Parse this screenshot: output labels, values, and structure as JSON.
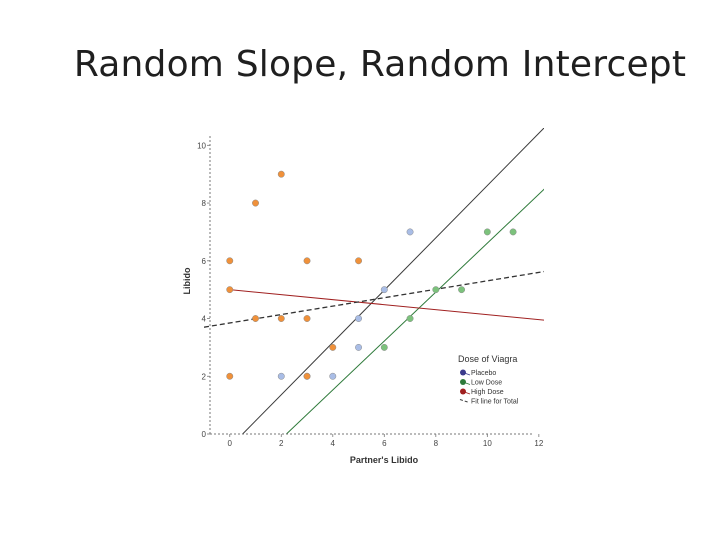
{
  "slide": {
    "title": "Random Slope, Random Intercept"
  },
  "chart_data": {
    "type": "scatter",
    "xlabel": "Partner's Libido",
    "ylabel": "Libido",
    "xlim": [
      -1,
      12.2
    ],
    "ylim": [
      0,
      10.6
    ],
    "x_ticks": [
      0,
      2,
      4,
      6,
      8,
      10,
      12
    ],
    "y_ticks": [
      0,
      2,
      4,
      6,
      8,
      10
    ],
    "legend": {
      "title": "Dose of Viagra",
      "placement": "bottom-right",
      "entries": [
        {
          "label": "Placebo",
          "color": "#3b3b8c",
          "marker": "dot"
        },
        {
          "label": "Low Dose",
          "color": "#2e7a3a",
          "marker": "dot"
        },
        {
          "label": "High Dose",
          "color": "#a02020",
          "marker": "dot"
        },
        {
          "label": "Fit line for Total",
          "color": "#333333",
          "marker": "dash"
        }
      ]
    },
    "series": [
      {
        "name": "Placebo",
        "color": "#a9bde6",
        "points": [
          [
            2,
            2
          ],
          [
            3,
            2
          ],
          [
            4,
            2
          ],
          [
            5,
            3
          ],
          [
            5,
            4
          ],
          [
            6,
            5
          ],
          [
            7,
            7
          ]
        ]
      },
      {
        "name": "Low Dose",
        "color": "#7cc27c",
        "points": [
          [
            6,
            3
          ],
          [
            7,
            4
          ],
          [
            8,
            5
          ],
          [
            9,
            5
          ],
          [
            10,
            7
          ],
          [
            11,
            7
          ]
        ]
      },
      {
        "name": "High Dose",
        "color": "#f0913a",
        "points": [
          [
            0,
            2
          ],
          [
            0,
            5
          ],
          [
            0,
            6
          ],
          [
            1,
            4
          ],
          [
            1,
            8
          ],
          [
            2,
            4
          ],
          [
            2,
            9
          ],
          [
            3,
            2
          ],
          [
            3,
            4
          ],
          [
            3,
            6
          ],
          [
            4,
            3
          ],
          [
            5,
            6
          ]
        ]
      }
    ],
    "fit_lines": [
      {
        "name": "Placebo",
        "color": "#3a3a3a",
        "style": "solid",
        "x": [
          0.5,
          12.2
        ],
        "y": [
          0,
          10.6
        ]
      },
      {
        "name": "Low Dose",
        "color": "#2e7a3a",
        "style": "solid",
        "x": [
          2.2,
          12.7
        ],
        "y": [
          0,
          8.9
        ]
      },
      {
        "name": "High Dose",
        "color": "#a02020",
        "style": "solid",
        "x": [
          0,
          12.7
        ],
        "y": [
          5.0,
          3.9
        ]
      },
      {
        "name": "Fit line for Total",
        "color": "#333333",
        "style": "dashed",
        "x": [
          -1,
          12.7
        ],
        "y": [
          3.7,
          5.7
        ]
      }
    ]
  }
}
